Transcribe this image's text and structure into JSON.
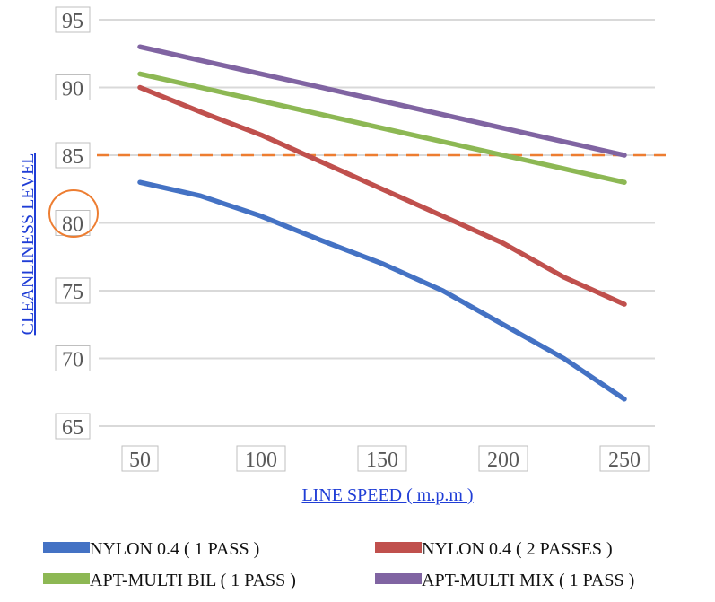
{
  "chart_data": {
    "type": "line",
    "title": "",
    "xlabel": "LINE SPEED ( m.p.m )",
    "ylabel": "CLEANLINESS LEVEL",
    "x_ticks": [
      "50",
      "100",
      "150",
      "200",
      "250"
    ],
    "y_ticks": [
      "65",
      "70",
      "75",
      "80",
      "85",
      "90",
      "95"
    ],
    "xlim": [
      50,
      250
    ],
    "ylim": [
      65,
      95
    ],
    "grid": "horizontal",
    "legend_position": "bottom",
    "reference_line": {
      "y": 85,
      "color": "#ED7D31",
      "style": "dashed"
    },
    "highlight_circle_tick": "80",
    "series": [
      {
        "name": "NYLON 0.4 ( 1 PASS )",
        "color": "#4472C4",
        "x": [
          50,
          75,
          100,
          125,
          150,
          175,
          200,
          225,
          250
        ],
        "y": [
          83,
          82,
          80.5,
          78.7,
          77,
          75,
          72.5,
          70,
          67
        ]
      },
      {
        "name": "NYLON 0.4 ( 2 PASSES )",
        "color": "#C0504D",
        "x": [
          50,
          75,
          100,
          125,
          150,
          175,
          200,
          225,
          250
        ],
        "y": [
          90,
          88.2,
          86.5,
          84.5,
          82.5,
          80.5,
          78.5,
          76,
          74
        ]
      },
      {
        "name": "APT-MULTI BIL ( 1 PASS )",
        "color": "#8DB854",
        "x": [
          50,
          75,
          100,
          125,
          150,
          175,
          200,
          225,
          250
        ],
        "y": [
          91,
          90,
          89,
          88,
          87,
          86,
          85,
          84,
          83
        ]
      },
      {
        "name": "APT-MULTI MIX ( 1 PASS )",
        "color": "#8064A2",
        "x": [
          50,
          75,
          100,
          125,
          150,
          175,
          200,
          225,
          250
        ],
        "y": [
          93,
          92,
          91,
          90,
          89,
          88,
          87,
          86,
          85
        ]
      }
    ]
  }
}
